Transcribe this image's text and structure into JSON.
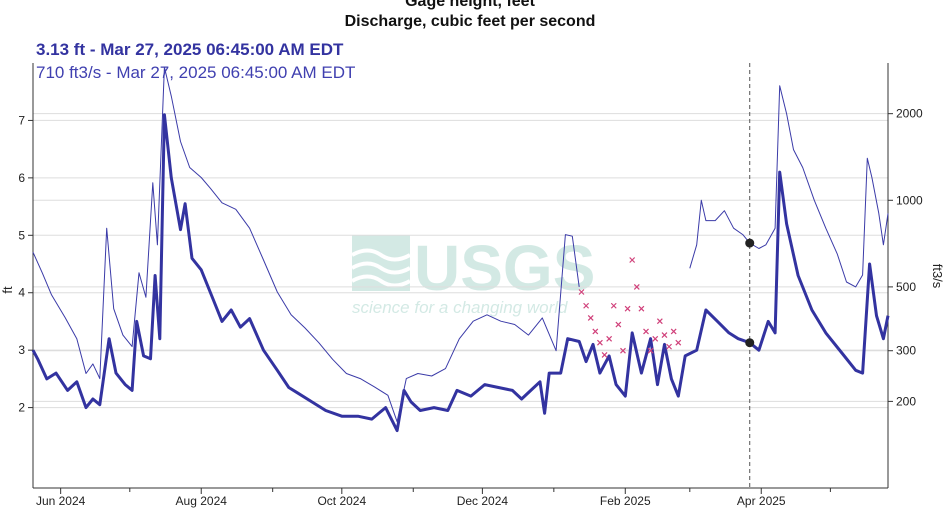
{
  "header": {
    "title_line1": "Gage height, feet",
    "title_line2": "Discharge, cubic feet per second"
  },
  "hover": {
    "primary": "3.13 ft - Mar 27, 2025 06:45:00 AM EDT",
    "secondary": "710 ft3/s - Mar 27, 2025 06:45:00 AM EDT"
  },
  "watermark": {
    "logo_text": "USGS",
    "tagline": "science for a changing world"
  },
  "colors": {
    "gage": "#3333a0",
    "discharge": "#3b3ba8",
    "ice_markers": "#d0407a",
    "grid": "#dddddd",
    "axis": "#333333"
  },
  "chart_data": {
    "type": "line",
    "x_axis": {
      "ticks": [
        "Jun 2024",
        "Aug 2024",
        "Oct 2024",
        "Dec 2024",
        "Feb 2025",
        "Apr 2025"
      ],
      "range": [
        "2024-05-20",
        "2025-05-26"
      ]
    },
    "left_axis": {
      "label": "ft",
      "ticks": [
        2,
        3,
        4,
        5,
        6,
        7
      ],
      "range": [
        0.6,
        8.0
      ],
      "grid": true
    },
    "right_axis": {
      "label": "ft3/s",
      "ticks": [
        "200",
        "300",
        "500",
        "1000",
        "2000"
      ],
      "tick_values": [
        200,
        300,
        500,
        1000,
        2000
      ],
      "scale": "log",
      "range": [
        100,
        3000
      ],
      "grid": true
    },
    "cursor_date": "2025-03-27",
    "series": [
      {
        "axis": "left",
        "points": [
          [
            "2024-05-20",
            3.0
          ],
          [
            "2024-05-22",
            2.85
          ],
          [
            "2024-05-26",
            2.5
          ],
          [
            "2024-05-30",
            2.6
          ],
          [
            "2024-06-04",
            2.3
          ],
          [
            "2024-06-08",
            2.45
          ],
          [
            "2024-06-12",
            2.0
          ],
          [
            "2024-06-15",
            2.15
          ],
          [
            "2024-06-18",
            2.05
          ],
          [
            "2024-06-22",
            3.2
          ],
          [
            "2024-06-25",
            2.6
          ],
          [
            "2024-06-29",
            2.4
          ],
          [
            "2024-07-02",
            2.3
          ],
          [
            "2024-07-04",
            3.5
          ],
          [
            "2024-07-07",
            2.9
          ],
          [
            "2024-07-10",
            2.85
          ],
          [
            "2024-07-12",
            4.3
          ],
          [
            "2024-07-14",
            3.2
          ],
          [
            "2024-07-16",
            7.1
          ],
          [
            "2024-07-19",
            6.0
          ],
          [
            "2024-07-23",
            5.1
          ],
          [
            "2024-07-25",
            5.55
          ],
          [
            "2024-07-28",
            4.6
          ],
          [
            "2024-08-01",
            4.4
          ],
          [
            "2024-08-06",
            3.9
          ],
          [
            "2024-08-10",
            3.5
          ],
          [
            "2024-08-14",
            3.7
          ],
          [
            "2024-08-18",
            3.4
          ],
          [
            "2024-08-22",
            3.55
          ],
          [
            "2024-08-28",
            3.0
          ],
          [
            "2024-09-03",
            2.65
          ],
          [
            "2024-09-08",
            2.35
          ],
          [
            "2024-09-12",
            2.25
          ],
          [
            "2024-09-18",
            2.1
          ],
          [
            "2024-09-24",
            1.95
          ],
          [
            "2024-10-01",
            1.85
          ],
          [
            "2024-10-08",
            1.85
          ],
          [
            "2024-10-14",
            1.8
          ],
          [
            "2024-10-20",
            2.0
          ],
          [
            "2024-10-25",
            1.6
          ],
          [
            "2024-10-28",
            2.3
          ],
          [
            "2024-10-31",
            2.1
          ],
          [
            "2024-11-04",
            1.95
          ],
          [
            "2024-11-10",
            2.0
          ],
          [
            "2024-11-16",
            1.95
          ],
          [
            "2024-11-20",
            2.3
          ],
          [
            "2024-11-26",
            2.2
          ],
          [
            "2024-12-02",
            2.4
          ],
          [
            "2024-12-08",
            2.35
          ],
          [
            "2024-12-14",
            2.3
          ],
          [
            "2024-12-18",
            2.15
          ],
          [
            "2024-12-22",
            2.3
          ],
          [
            "2024-12-26",
            2.45
          ],
          [
            "2024-12-28",
            1.9
          ],
          [
            "2024-12-30",
            2.6
          ],
          [
            "2025-01-04",
            2.6
          ],
          [
            "2025-01-07",
            3.2
          ],
          [
            "2025-01-12",
            3.15
          ],
          [
            "2025-01-15",
            2.8
          ],
          [
            "2025-01-18",
            3.1
          ],
          [
            "2025-01-21",
            2.6
          ],
          [
            "2025-01-25",
            2.9
          ],
          [
            "2025-01-28",
            2.4
          ],
          [
            "2025-02-01",
            2.2
          ],
          [
            "2025-02-04",
            3.3
          ],
          [
            "2025-02-08",
            2.6
          ],
          [
            "2025-02-12",
            3.2
          ],
          [
            "2025-02-15",
            2.4
          ],
          [
            "2025-02-18",
            3.1
          ],
          [
            "2025-02-21",
            2.5
          ],
          [
            "2025-02-24",
            2.2
          ],
          [
            "2025-02-27",
            2.9
          ],
          [
            "2025-03-04",
            3.0
          ],
          [
            "2025-03-08",
            3.7
          ],
          [
            "2025-03-13",
            3.5
          ],
          [
            "2025-03-18",
            3.3
          ],
          [
            "2025-03-22",
            3.2
          ],
          [
            "2025-03-27",
            3.13
          ],
          [
            "2025-03-31",
            3.0
          ],
          [
            "2025-04-04",
            3.5
          ],
          [
            "2025-04-07",
            3.3
          ],
          [
            "2025-04-09",
            6.1
          ],
          [
            "2025-04-12",
            5.2
          ],
          [
            "2025-04-17",
            4.3
          ],
          [
            "2025-04-23",
            3.7
          ],
          [
            "2025-04-29",
            3.3
          ],
          [
            "2025-05-06",
            2.95
          ],
          [
            "2025-05-12",
            2.65
          ],
          [
            "2025-05-15",
            2.6
          ],
          [
            "2025-05-18",
            4.5
          ],
          [
            "2025-05-21",
            3.6
          ],
          [
            "2025-05-24",
            3.2
          ],
          [
            "2025-05-26",
            3.6
          ]
        ]
      },
      {
        "axis": "right",
        "points": [
          [
            "2024-05-20",
            660
          ],
          [
            "2024-05-24",
            560
          ],
          [
            "2024-05-28",
            470
          ],
          [
            "2024-06-03",
            390
          ],
          [
            "2024-06-08",
            330
          ],
          [
            "2024-06-12",
            250
          ],
          [
            "2024-06-15",
            270
          ],
          [
            "2024-06-18",
            240
          ],
          [
            "2024-06-21",
            800
          ],
          [
            "2024-06-24",
            420
          ],
          [
            "2024-06-28",
            340
          ],
          [
            "2024-07-02",
            310
          ],
          [
            "2024-07-05",
            560
          ],
          [
            "2024-07-08",
            460
          ],
          [
            "2024-07-11",
            1150
          ],
          [
            "2024-07-13",
            700
          ],
          [
            "2024-07-16",
            2900
          ],
          [
            "2024-07-19",
            2300
          ],
          [
            "2024-07-23",
            1600
          ],
          [
            "2024-07-27",
            1300
          ],
          [
            "2024-08-01",
            1200
          ],
          [
            "2024-08-05",
            1100
          ],
          [
            "2024-08-10",
            980
          ],
          [
            "2024-08-16",
            930
          ],
          [
            "2024-08-22",
            800
          ],
          [
            "2024-08-28",
            620
          ],
          [
            "2024-09-03",
            480
          ],
          [
            "2024-09-09",
            400
          ],
          [
            "2024-09-15",
            360
          ],
          [
            "2024-09-21",
            320
          ],
          [
            "2024-09-27",
            280
          ],
          [
            "2024-10-03",
            250
          ],
          [
            "2024-10-09",
            240
          ],
          [
            "2024-10-15",
            225
          ],
          [
            "2024-10-21",
            210
          ],
          [
            "2024-10-25",
            170
          ],
          [
            "2024-10-29",
            240
          ],
          [
            "2024-11-03",
            250
          ],
          [
            "2024-11-09",
            245
          ],
          [
            "2024-11-15",
            260
          ],
          [
            "2024-11-21",
            330
          ],
          [
            "2024-11-27",
            380
          ],
          [
            "2024-12-03",
            400
          ],
          [
            "2024-12-09",
            380
          ],
          [
            "2024-12-15",
            370
          ],
          [
            "2024-12-21",
            340
          ],
          [
            "2024-12-27",
            390
          ],
          [
            "2025-01-02",
            300
          ],
          [
            "2025-01-06",
            760
          ],
          [
            "2025-01-09",
            750
          ],
          [
            "2025-01-12",
            500
          ]
        ]
      },
      {
        "axis": "right",
        "points": [
          [
            "2025-03-01",
            580
          ],
          [
            "2025-03-04",
            700
          ],
          [
            "2025-03-06",
            1000
          ],
          [
            "2025-03-08",
            850
          ],
          [
            "2025-03-12",
            850
          ],
          [
            "2025-03-16",
            920
          ],
          [
            "2025-03-20",
            800
          ],
          [
            "2025-03-24",
            760
          ],
          [
            "2025-03-27",
            710
          ],
          [
            "2025-03-31",
            680
          ],
          [
            "2025-04-03",
            700
          ],
          [
            "2025-04-07",
            800
          ],
          [
            "2025-04-09",
            2500
          ],
          [
            "2025-04-12",
            2000
          ],
          [
            "2025-04-15",
            1500
          ],
          [
            "2025-04-19",
            1300
          ],
          [
            "2025-04-24",
            1000
          ],
          [
            "2025-04-29",
            800
          ],
          [
            "2025-05-04",
            650
          ],
          [
            "2025-05-08",
            520
          ],
          [
            "2025-05-12",
            500
          ],
          [
            "2025-05-15",
            550
          ],
          [
            "2025-05-17",
            1400
          ],
          [
            "2025-05-19",
            1200
          ],
          [
            "2025-05-22",
            900
          ],
          [
            "2025-05-24",
            700
          ],
          [
            "2025-05-26",
            900
          ]
        ]
      },
      {
        "axis": "right",
        "kind": "estimated-markers",
        "points": [
          [
            "2025-01-13",
            480
          ],
          [
            "2025-01-15",
            430
          ],
          [
            "2025-01-17",
            390
          ],
          [
            "2025-01-19",
            350
          ],
          [
            "2025-01-21",
            320
          ],
          [
            "2025-01-23",
            290
          ],
          [
            "2025-01-25",
            330
          ],
          [
            "2025-01-27",
            430
          ],
          [
            "2025-01-29",
            370
          ],
          [
            "2025-01-31",
            300
          ],
          [
            "2025-02-02",
            420
          ],
          [
            "2025-02-04",
            620
          ],
          [
            "2025-02-06",
            500
          ],
          [
            "2025-02-08",
            420
          ],
          [
            "2025-02-10",
            350
          ],
          [
            "2025-02-12",
            300
          ],
          [
            "2025-02-14",
            330
          ],
          [
            "2025-02-16",
            380
          ],
          [
            "2025-02-18",
            340
          ],
          [
            "2025-02-20",
            310
          ],
          [
            "2025-02-22",
            350
          ],
          [
            "2025-02-24",
            320
          ]
        ]
      }
    ]
  }
}
